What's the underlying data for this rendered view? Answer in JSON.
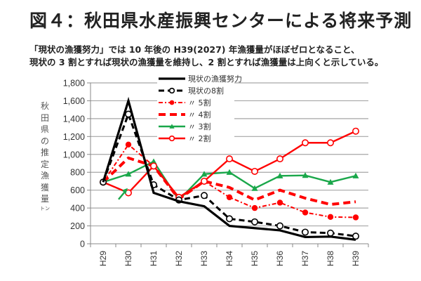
{
  "header": {
    "title": "図４：秋田県水産振興センターによる将来予測",
    "subtitle_line1": "「現状の漁獲努力」では 10 年後の H39(2027) 年漁獲量がほぼゼロとなること、",
    "subtitle_line2": "現状の 3 割とすれば現状の漁獲量を維持し、2 割とすれば漁獲量は上向くと示している。"
  },
  "chart_data": {
    "type": "line",
    "title": "",
    "xlabel": "",
    "ylabel": "秋田県の推定漁獲量",
    "ylabel_chars": [
      "秋",
      "田",
      "県",
      "の",
      "推",
      "定",
      "漁",
      "獲",
      "量"
    ],
    "ylabel_unit": "トン",
    "ylim": [
      0,
      1800
    ],
    "yticks": [
      0,
      200,
      400,
      600,
      800,
      1000,
      1200,
      1400,
      1600,
      1800
    ],
    "ytick_labels": [
      "0",
      "200",
      "400",
      "600",
      "800",
      "1,000",
      "1,200",
      "1,400",
      "1,600",
      "1,800"
    ],
    "grid": true,
    "legend_position": "top-center",
    "categories": [
      "H29",
      "H30",
      "H31",
      "H32",
      "H33",
      "H34",
      "H35",
      "H36",
      "H37",
      "H38",
      "H39"
    ],
    "series": [
      {
        "name": "現状の漁獲努力",
        "color": "#000000",
        "style": "solid-thick",
        "marker": "none",
        "values": [
          690,
          1600,
          570,
          475,
          420,
          200,
          175,
          150,
          75,
          80,
          45
        ]
      },
      {
        "name": "現状の8割",
        "color": "#000000",
        "style": "dashed",
        "marker": "open-circle",
        "values": [
          690,
          1450,
          660,
          490,
          540,
          280,
          245,
          200,
          130,
          120,
          85
        ]
      },
      {
        "name": "〃 5割",
        "color": "#ff0000",
        "style": "dash-dot",
        "marker": "filled-circle",
        "values": [
          690,
          1110,
          870,
          500,
          700,
          520,
          400,
          460,
          350,
          300,
          295
        ]
      },
      {
        "name": "〃 4割",
        "color": "#ff0000",
        "style": "dashed-thick",
        "marker": "none",
        "values": [
          690,
          960,
          870,
          500,
          700,
          630,
          490,
          600,
          510,
          440,
          470
        ]
      },
      {
        "name": "〃 3割",
        "color": "#1aa74a",
        "style": "solid",
        "marker": "triangle",
        "values": [
          690,
          780,
          920,
          490,
          780,
          800,
          620,
          760,
          765,
          690,
          760
        ]
      },
      {
        "name": "〃 2割",
        "color": "#ff0000",
        "style": "solid",
        "marker": "open-circle",
        "values": [
          690,
          570,
          870,
          520,
          700,
          950,
          810,
          950,
          1130,
          1130,
          1260
        ]
      }
    ],
    "annotations": [
      {
        "type": "arrow",
        "color": "#1aa74a",
        "at_category": "H30",
        "description": "green arrow pointing to 3割 line at H30"
      }
    ]
  }
}
